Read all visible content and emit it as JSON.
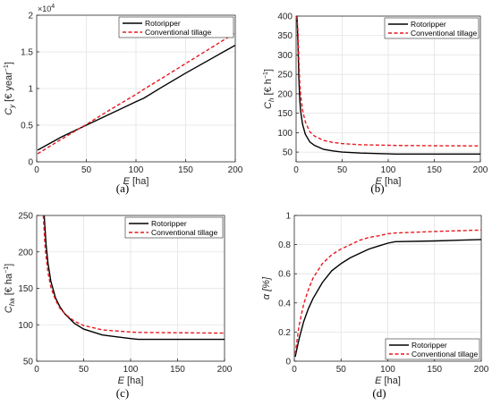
{
  "styles": {
    "rotoripper_color": "#000000",
    "conventional_color": "#e6191f",
    "grid_color": "#e3e3e3",
    "axis_color": "#262626"
  },
  "chart_data": [
    {
      "type": "line",
      "caption": "(a)",
      "xlabel": "E [ha]",
      "ylabel": "C_y [€ year⁻¹]",
      "ylabel_main": "C",
      "ylabel_sub": "y",
      "ylabel_rest": " [€ year",
      "ylabel_sup": "−1",
      "ylabel_close": "]",
      "y_exponent_label": "×10",
      "y_exponent_power": "4",
      "xlim": [
        0,
        200
      ],
      "ylim": [
        0,
        2
      ],
      "xticks": [
        0,
        50,
        100,
        150,
        200
      ],
      "yticks": [
        0,
        0.5,
        1,
        1.5,
        2
      ],
      "yticklabels": [
        "0",
        "0.5",
        "1",
        "1.5",
        "2"
      ],
      "grid": true,
      "legend_position": "top-right",
      "series": [
        {
          "name": "Rotoripper",
          "style": "solid",
          "x": [
            1,
            25,
            50,
            75,
            100,
            108,
            125,
            150,
            175,
            200
          ],
          "y": [
            0.16,
            0.34,
            0.5,
            0.66,
            0.82,
            0.87,
            1.01,
            1.21,
            1.4,
            1.59
          ]
        },
        {
          "name": "Conventional tillage",
          "style": "dashed",
          "x": [
            1,
            25,
            50,
            75,
            100,
            108,
            125,
            150,
            175,
            200
          ],
          "y": [
            0.11,
            0.31,
            0.51,
            0.72,
            0.92,
            0.99,
            1.13,
            1.34,
            1.55,
            1.76
          ]
        }
      ]
    },
    {
      "type": "line",
      "caption": "(b)",
      "xlabel": "E [ha]",
      "ylabel": "C_h [€ h⁻¹]",
      "ylabel_main": "C",
      "ylabel_sub": "h",
      "ylabel_rest": " [€ h",
      "ylabel_sup": "−1",
      "ylabel_close": "]",
      "xlim": [
        0,
        200
      ],
      "ylim": [
        25,
        400
      ],
      "xticks": [
        0,
        50,
        100,
        150,
        200
      ],
      "yticks": [
        50,
        100,
        150,
        200,
        250,
        300,
        350,
        400
      ],
      "yticklabels": [
        "50",
        "100",
        "150",
        "200",
        "250",
        "300",
        "350",
        "400"
      ],
      "grid": true,
      "legend_position": "top-right",
      "series": [
        {
          "name": "Rotoripper",
          "style": "solid",
          "x": [
            1,
            2,
            3,
            4,
            5,
            7,
            10,
            15,
            20,
            30,
            40,
            50,
            70,
            100,
            108,
            150,
            200
          ],
          "y": [
            400,
            330,
            240,
            185,
            155,
            122,
            96,
            76,
            67,
            57,
            53,
            50,
            47.5,
            45.5,
            45,
            45,
            45
          ]
        },
        {
          "name": "Conventional tillage",
          "style": "dashed",
          "x": [
            1,
            2,
            3,
            4,
            5,
            7,
            10,
            15,
            20,
            30,
            40,
            50,
            70,
            100,
            108,
            150,
            200
          ],
          "y": [
            400,
            360,
            285,
            230,
            196,
            158,
            128,
            102,
            91,
            80,
            75,
            72,
            69,
            67.5,
            67,
            66.5,
            66
          ]
        }
      ]
    },
    {
      "type": "line",
      "caption": "(c)",
      "xlabel": "E [ha]",
      "ylabel": "C_ha [€ ha⁻¹]",
      "ylabel_main": "C",
      "ylabel_sub": "ha",
      "ylabel_rest": " [€ ha",
      "ylabel_sup": "−1",
      "ylabel_close": "]",
      "xlim": [
        0,
        200
      ],
      "ylim": [
        50,
        250
      ],
      "xticks": [
        0,
        50,
        100,
        150,
        200
      ],
      "yticks": [
        50,
        100,
        150,
        200,
        250
      ],
      "yticklabels": [
        "50",
        "100",
        "150",
        "200",
        "250"
      ],
      "grid": true,
      "legend_position": "top-right",
      "series": [
        {
          "name": "Rotoripper",
          "style": "solid",
          "x": [
            8,
            10,
            12,
            15,
            20,
            25,
            30,
            40,
            50,
            70,
            100,
            108,
            150,
            200
          ],
          "y": [
            250,
            210,
            185,
            160,
            137,
            124,
            115,
            102,
            94,
            86,
            81,
            80,
            80,
            80
          ]
        },
        {
          "name": "Conventional tillage",
          "style": "dashed",
          "x": [
            7,
            9,
            12,
            15,
            20,
            25,
            30,
            40,
            50,
            70,
            100,
            108,
            150,
            200
          ],
          "y": [
            250,
            205,
            172,
            152,
            134,
            122,
            115,
            105,
            99,
            93,
            90,
            89.5,
            89,
            88.5
          ]
        }
      ]
    },
    {
      "type": "line",
      "caption": "(d)",
      "xlabel": "E [ha]",
      "ylabel": "α [%]",
      "ylabel_main": "α [%]",
      "ylabel_sub": "",
      "ylabel_rest": "",
      "ylabel_sup": "",
      "ylabel_close": "",
      "xlim": [
        0,
        200
      ],
      "ylim": [
        0,
        1
      ],
      "xticks": [
        0,
        50,
        100,
        150,
        200
      ],
      "yticks": [
        0,
        0.2,
        0.4,
        0.6,
        0.8,
        1
      ],
      "yticklabels": [
        "0",
        "0.2",
        "0.4",
        "0.6",
        "0.8",
        "1"
      ],
      "grid": true,
      "legend_position": "bottom-right",
      "series": [
        {
          "name": "Rotoripper",
          "style": "solid",
          "x": [
            1,
            5,
            10,
            15,
            20,
            30,
            40,
            50,
            60,
            70,
            80,
            90,
            100,
            108,
            150,
            200
          ],
          "y": [
            0.03,
            0.15,
            0.27,
            0.36,
            0.43,
            0.54,
            0.62,
            0.67,
            0.71,
            0.74,
            0.77,
            0.79,
            0.81,
            0.82,
            0.825,
            0.835
          ]
        },
        {
          "name": "Conventional tillage",
          "style": "dashed",
          "x": [
            1,
            5,
            10,
            15,
            20,
            30,
            40,
            50,
            60,
            70,
            80,
            90,
            100,
            108,
            150,
            200
          ],
          "y": [
            0.05,
            0.24,
            0.39,
            0.49,
            0.57,
            0.67,
            0.73,
            0.77,
            0.8,
            0.83,
            0.85,
            0.86,
            0.875,
            0.88,
            0.89,
            0.9
          ]
        }
      ]
    }
  ]
}
